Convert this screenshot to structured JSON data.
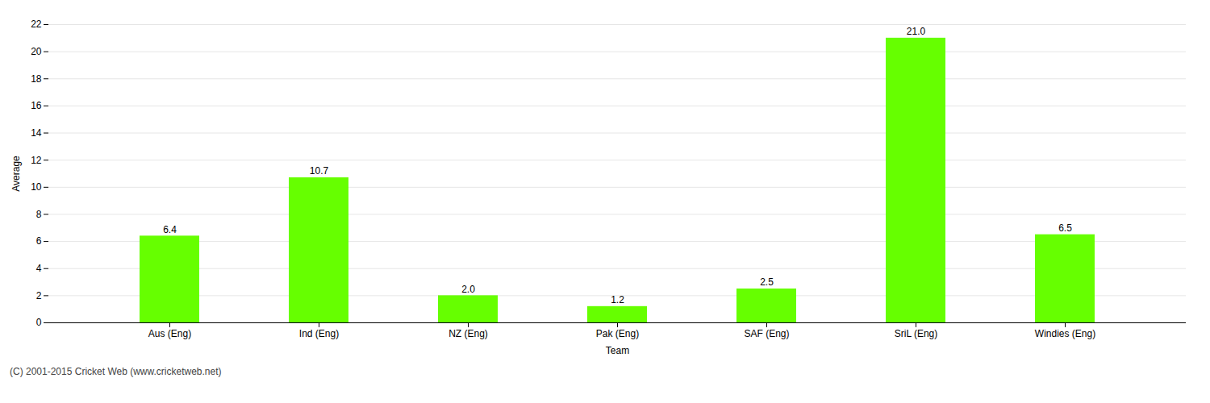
{
  "chart_data": {
    "type": "bar",
    "categories": [
      "Aus (Eng)",
      "Ind (Eng)",
      "NZ (Eng)",
      "Pak (Eng)",
      "SAF (Eng)",
      "SriL (Eng)",
      "Windies (Eng)"
    ],
    "values": [
      6.4,
      10.7,
      2.0,
      1.2,
      2.5,
      21.0,
      6.5
    ],
    "value_labels": [
      "6.4",
      "10.7",
      "2.0",
      "1.2",
      "2.5",
      "21.0",
      "6.5"
    ],
    "color": "#66ff00",
    "xlabel": "Team",
    "ylabel": "Average",
    "ylim": [
      0,
      22
    ],
    "yticks": [
      0,
      2,
      4,
      6,
      8,
      10,
      12,
      14,
      16,
      18,
      20,
      22
    ],
    "grid": true,
    "data_labels": true,
    "annotations": [
      "(C) 2001-2015 Cricket Web (www.cricketweb.net)"
    ]
  }
}
